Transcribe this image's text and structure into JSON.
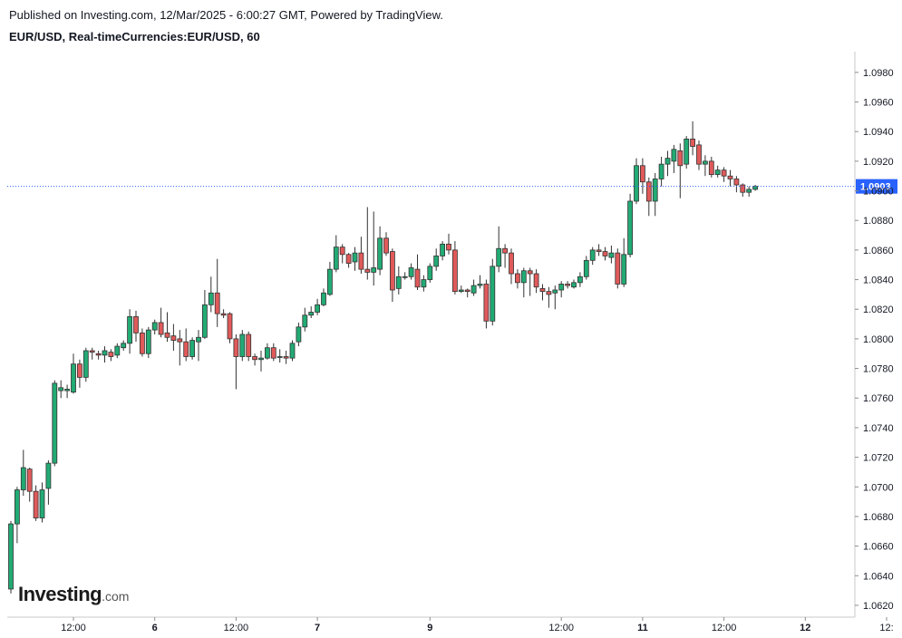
{
  "header": {
    "published": "Published on Investing.com, 12/Mar/2025 - 6:00:27 GMT, Powered by TradingView.",
    "symbol": "EUR/USD, Real-timeCurrencies:EUR/USD, 60"
  },
  "logo": {
    "main": "Investing",
    "suffix": ".com"
  },
  "colors": {
    "up": "#26a69a",
    "up_fill": "#22ab74",
    "down": "#ef5350",
    "down_fill": "#e05a5a",
    "wick": "#333333",
    "last_price": "#2962ff"
  },
  "chart_data": {
    "type": "candlestick",
    "title": "EUR/USD, Real-timeCurrencies:EUR/USD, 60",
    "ylim": [
      1.0612,
      1.0994
    ],
    "y_ticks": [
      "1.0620",
      "1.0640",
      "1.0660",
      "1.0680",
      "1.0700",
      "1.0720",
      "1.0740",
      "1.0760",
      "1.0780",
      "1.0800",
      "1.0820",
      "1.0840",
      "1.0860",
      "1.0880",
      "1.0900",
      "1.0920",
      "1.0940",
      "1.0960",
      "1.0980"
    ],
    "x_ticks": [
      {
        "label": "12:00",
        "index": 10
      },
      {
        "label": "6",
        "index": 23
      },
      {
        "label": "12:00",
        "index": 36
      },
      {
        "label": "7",
        "index": 49
      },
      {
        "label": "9",
        "index": 67
      },
      {
        "label": "12:00",
        "index": 88
      },
      {
        "label": "11",
        "index": 101
      },
      {
        "label": "12:00",
        "index": 114
      },
      {
        "label": "12",
        "index": 127
      },
      {
        "label": "12:",
        "index": 140
      }
    ],
    "last_price": 1.0903,
    "last_price_label": "1.0903",
    "grid": false,
    "candles": [
      [
        1.0631,
        1.0675,
        1.0628,
        1.0677
      ],
      [
        1.0675,
        1.0698,
        1.0662,
        1.07
      ],
      [
        1.0698,
        1.0713,
        1.0694,
        1.0725
      ],
      [
        1.0712,
        1.0697,
        1.069,
        1.0713
      ],
      [
        1.0697,
        1.0679,
        1.0677,
        1.0701
      ],
      [
        1.0679,
        1.0698,
        1.0676,
        1.0703
      ],
      [
        1.0699,
        1.0716,
        1.0688,
        1.0718
      ],
      [
        1.0716,
        1.077,
        1.0714,
        1.0772
      ],
      [
        1.0765,
        1.0767,
        1.076,
        1.0772
      ],
      [
        1.0765,
        1.0766,
        1.076,
        1.0769
      ],
      [
        1.0764,
        1.0783,
        1.0763,
        1.079
      ],
      [
        1.0783,
        1.0774,
        1.0767,
        1.0786
      ],
      [
        1.0774,
        1.0792,
        1.0771,
        1.0794
      ],
      [
        1.0792,
        1.0791,
        1.0786,
        1.0794
      ],
      [
        1.079,
        1.0789,
        1.0786,
        1.0792
      ],
      [
        1.0789,
        1.0792,
        1.0784,
        1.0795
      ],
      [
        1.0791,
        1.0788,
        1.0785,
        1.0793
      ],
      [
        1.0789,
        1.0795,
        1.0787,
        1.0797
      ],
      [
        1.0794,
        1.0797,
        1.0792,
        1.0799
      ],
      [
        1.0797,
        1.0815,
        1.079,
        1.082
      ],
      [
        1.0815,
        1.0804,
        1.0798,
        1.0819
      ],
      [
        1.0804,
        1.079,
        1.0788,
        1.0807
      ],
      [
        1.079,
        1.0806,
        1.0787,
        1.0808
      ],
      [
        1.0806,
        1.0811,
        1.0803,
        1.0813
      ],
      [
        1.0811,
        1.0803,
        1.0801,
        1.0821
      ],
      [
        1.0804,
        1.0801,
        1.0798,
        1.0818
      ],
      [
        1.0802,
        1.0799,
        1.0792,
        1.081
      ],
      [
        1.08,
        1.0798,
        1.0782,
        1.0806
      ],
      [
        1.0798,
        1.0788,
        1.0785,
        1.0807
      ],
      [
        1.0788,
        1.0799,
        1.0786,
        1.0801
      ],
      [
        1.0798,
        1.0801,
        1.0785,
        1.0806
      ],
      [
        1.0801,
        1.0823,
        1.08,
        1.0833
      ],
      [
        1.0823,
        1.0831,
        1.0818,
        1.0842
      ],
      [
        1.0831,
        1.0817,
        1.0808,
        1.0854
      ],
      [
        1.0817,
        1.0816,
        1.0814,
        1.082
      ],
      [
        1.0817,
        1.08,
        1.0797,
        1.0818
      ],
      [
        1.08,
        1.0788,
        1.0766,
        1.0803
      ],
      [
        1.0788,
        1.0803,
        1.0785,
        1.0806
      ],
      [
        1.0803,
        1.0788,
        1.0785,
        1.0805
      ],
      [
        1.0788,
        1.0786,
        1.0782,
        1.079
      ],
      [
        1.0786,
        1.0787,
        1.0778,
        1.0792
      ],
      [
        1.0787,
        1.0794,
        1.0786,
        1.0797
      ],
      [
        1.0794,
        1.0787,
        1.0785,
        1.0797
      ],
      [
        1.0788,
        1.0788,
        1.0784,
        1.0793
      ],
      [
        1.0788,
        1.0787,
        1.0783,
        1.0792
      ],
      [
        1.0787,
        1.0797,
        1.0785,
        1.0799
      ],
      [
        1.0798,
        1.0808,
        1.0795,
        1.0811
      ],
      [
        1.0808,
        1.0816,
        1.0805,
        1.0821
      ],
      [
        1.0816,
        1.0818,
        1.0814,
        1.0822
      ],
      [
        1.0818,
        1.0823,
        1.0816,
        1.0827
      ],
      [
        1.0823,
        1.0831,
        1.0822,
        1.0834
      ],
      [
        1.083,
        1.0847,
        1.0829,
        1.0852
      ],
      [
        1.0847,
        1.0862,
        1.0845,
        1.087
      ],
      [
        1.0862,
        1.0857,
        1.0851,
        1.0864
      ],
      [
        1.0857,
        1.0851,
        1.0848,
        1.0858
      ],
      [
        1.0852,
        1.0858,
        1.0846,
        1.0862
      ],
      [
        1.0858,
        1.0847,
        1.0844,
        1.0869
      ],
      [
        1.0847,
        1.0845,
        1.084,
        1.0889
      ],
      [
        1.0845,
        1.0848,
        1.0836,
        1.0886
      ],
      [
        1.0847,
        1.0868,
        1.0843,
        1.0876
      ],
      [
        1.0868,
        1.0858,
        1.0856,
        1.0872
      ],
      [
        1.0859,
        1.0833,
        1.0825,
        1.0861
      ],
      [
        1.0834,
        1.0842,
        1.083,
        1.0849
      ],
      [
        1.0842,
        1.0842,
        1.084,
        1.0845
      ],
      [
        1.0842,
        1.0848,
        1.084,
        1.0851
      ],
      [
        1.0847,
        1.0835,
        1.0833,
        1.0857
      ],
      [
        1.0835,
        1.084,
        1.0832,
        1.0843
      ],
      [
        1.084,
        1.0849,
        1.0838,
        1.0851
      ],
      [
        1.0849,
        1.0856,
        1.0846,
        1.0861
      ],
      [
        1.0856,
        1.0864,
        1.0853,
        1.0866
      ],
      [
        1.0864,
        1.086,
        1.0857,
        1.0871
      ],
      [
        1.086,
        1.0832,
        1.083,
        1.0866
      ],
      [
        1.0832,
        1.0833,
        1.0831,
        1.0836
      ],
      [
        1.0833,
        1.0832,
        1.0828,
        1.0834
      ],
      [
        1.0831,
        1.0836,
        1.0829,
        1.084
      ],
      [
        1.0836,
        1.0837,
        1.0834,
        1.0843
      ],
      [
        1.0837,
        1.0812,
        1.0807,
        1.084
      ],
      [
        1.0812,
        1.0849,
        1.0809,
        1.0854
      ],
      [
        1.0849,
        1.0861,
        1.0845,
        1.0876
      ],
      [
        1.0861,
        1.0858,
        1.0848,
        1.0864
      ],
      [
        1.0858,
        1.0844,
        1.0837,
        1.0861
      ],
      [
        1.0844,
        1.0838,
        1.0834,
        1.0847
      ],
      [
        1.0838,
        1.0846,
        1.0828,
        1.0848
      ],
      [
        1.0846,
        1.0844,
        1.0829,
        1.0848
      ],
      [
        1.0844,
        1.0835,
        1.0831,
        1.0847
      ],
      [
        1.0834,
        1.0832,
        1.0826,
        1.0837
      ],
      [
        1.0832,
        1.083,
        1.0821,
        1.0835
      ],
      [
        1.0831,
        1.0833,
        1.082,
        1.0836
      ],
      [
        1.0833,
        1.0837,
        1.0828,
        1.0839
      ],
      [
        1.0837,
        1.0836,
        1.0834,
        1.0839
      ],
      [
        1.0835,
        1.0838,
        1.0834,
        1.084
      ],
      [
        1.0838,
        1.0842,
        1.0835,
        1.0845
      ],
      [
        1.0842,
        1.0853,
        1.084,
        1.0856
      ],
      [
        1.0853,
        1.086,
        1.085,
        1.0862
      ],
      [
        1.086,
        1.0859,
        1.0856,
        1.0864
      ],
      [
        1.0859,
        1.0856,
        1.0853,
        1.0862
      ],
      [
        1.0855,
        1.0858,
        1.0851,
        1.0863
      ],
      [
        1.0858,
        1.0837,
        1.0834,
        1.0861
      ],
      [
        1.0837,
        1.0857,
        1.0835,
        1.0868
      ],
      [
        1.0857,
        1.0893,
        1.0855,
        1.0898
      ],
      [
        1.0893,
        1.0917,
        1.0891,
        1.0922
      ],
      [
        1.0917,
        1.0906,
        1.0898,
        1.0922
      ],
      [
        1.0906,
        1.0893,
        1.0883,
        1.0909
      ],
      [
        1.0893,
        1.0908,
        1.0883,
        1.0912
      ],
      [
        1.0908,
        1.0918,
        1.0903,
        1.0923
      ],
      [
        1.0918,
        1.0922,
        1.091,
        1.0927
      ],
      [
        1.092,
        1.0928,
        1.0912,
        1.0931
      ],
      [
        1.0927,
        1.0917,
        1.0895,
        1.0932
      ],
      [
        1.0918,
        1.0935,
        1.0915,
        1.0937
      ],
      [
        1.0935,
        1.093,
        1.0924,
        1.0947
      ],
      [
        1.0931,
        1.0918,
        1.0914,
        1.0934
      ],
      [
        1.0918,
        1.092,
        1.091,
        1.0924
      ],
      [
        1.092,
        1.0911,
        1.0909,
        1.0923
      ],
      [
        1.0911,
        1.0914,
        1.0909,
        1.0917
      ],
      [
        1.0914,
        1.091,
        1.0906,
        1.0916
      ],
      [
        1.091,
        1.0908,
        1.0903,
        1.0914
      ],
      [
        1.0908,
        1.0904,
        1.0899,
        1.091
      ],
      [
        1.0904,
        1.0899,
        1.0896,
        1.0905
      ],
      [
        1.0899,
        1.0901,
        1.0896,
        1.0903
      ],
      [
        1.0901,
        1.0903,
        1.09,
        1.0904
      ]
    ]
  }
}
